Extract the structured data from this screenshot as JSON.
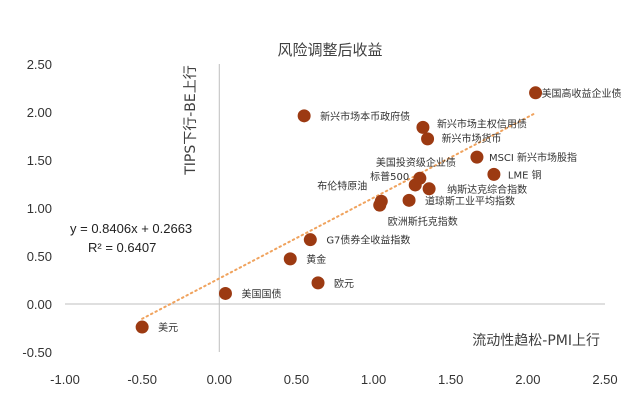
{
  "chart_data": {
    "type": "scatter",
    "title": "风险调整后收益",
    "xlabel": "流动性趋松-PMI上行",
    "ylabel": "TIPS下行-BE上行",
    "xlim": [
      -1.0,
      2.5
    ],
    "ylim": [
      -0.5,
      2.5
    ],
    "x_ticks": [
      "-1.00",
      "-0.50",
      "0.00",
      "0.50",
      "1.00",
      "1.50",
      "2.00",
      "2.50"
    ],
    "y_ticks": [
      "2.50",
      "2.00",
      "1.50",
      "1.00",
      "0.50",
      "0.00",
      "-0.50"
    ],
    "grid": false,
    "points": [
      {
        "label": "美国高收益企业债",
        "x": 2.05,
        "y": 2.2
      },
      {
        "label": "新兴市场本币政府债",
        "x": 0.55,
        "y": 1.96
      },
      {
        "label": "新兴市场主权信用债",
        "x": 1.32,
        "y": 1.84
      },
      {
        "label": "新兴市场货币",
        "x": 1.35,
        "y": 1.72
      },
      {
        "label": "MSCI 新兴市场股指",
        "x": 1.67,
        "y": 1.53
      },
      {
        "label": "美国投资级企业债",
        "x": 1.3,
        "y": 1.31
      },
      {
        "label": "LME 铜",
        "x": 1.78,
        "y": 1.35
      },
      {
        "label": "标普500",
        "x": 1.27,
        "y": 1.24
      },
      {
        "label": "纳斯达克综合指数",
        "x": 1.36,
        "y": 1.2
      },
      {
        "label": "布伦特原油",
        "x": 1.05,
        "y": 1.07
      },
      {
        "label": "道琼斯工业平均指数",
        "x": 1.23,
        "y": 1.08
      },
      {
        "label": "欧洲斯托克指数",
        "x": 1.04,
        "y": 1.03
      },
      {
        "label": "G7债券全收益指数",
        "x": 0.59,
        "y": 0.67
      },
      {
        "label": "黄金",
        "x": 0.46,
        "y": 0.47
      },
      {
        "label": "欧元",
        "x": 0.64,
        "y": 0.22
      },
      {
        "label": "美国国债",
        "x": 0.04,
        "y": 0.11
      },
      {
        "label": "美元",
        "x": -0.5,
        "y": -0.24
      }
    ],
    "trendline": {
      "slope": 0.8406,
      "intercept": 0.2663,
      "style": "dotted",
      "color": "#f0a35e"
    },
    "annotations": {
      "equation": "y = 0.8406x + 0.2663",
      "r_squared": "R² = 0.6407"
    },
    "marker_color": "#9c3a12"
  }
}
